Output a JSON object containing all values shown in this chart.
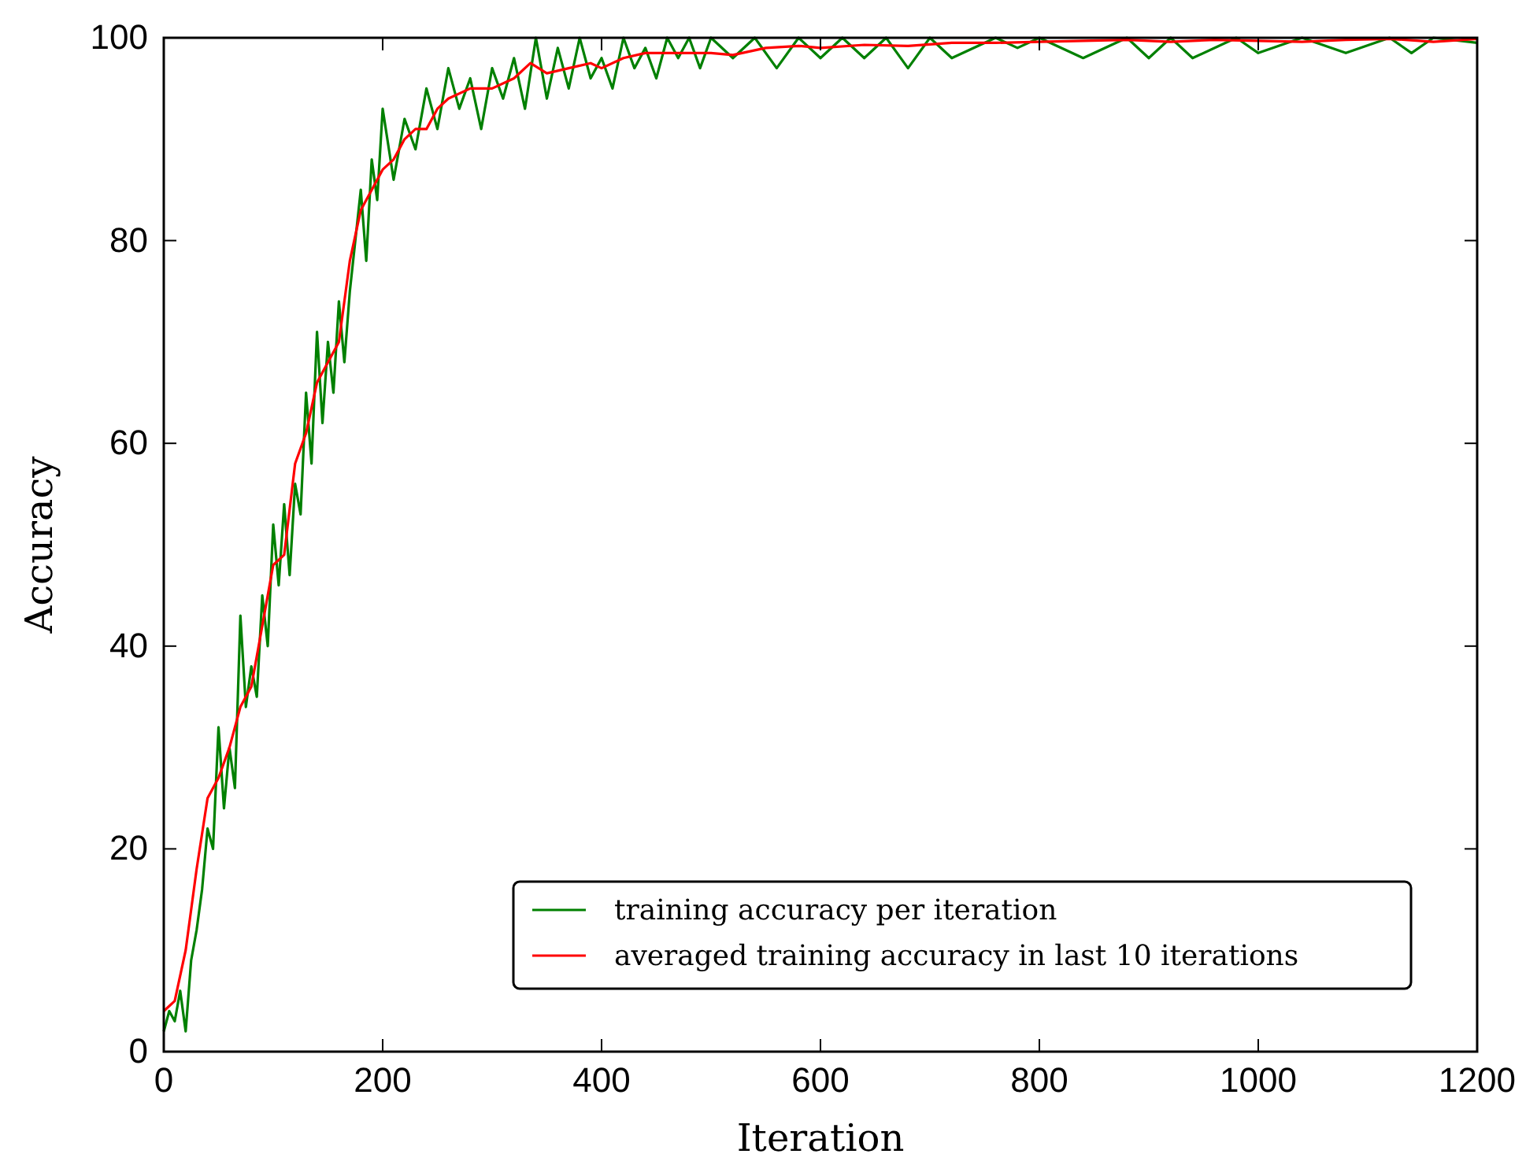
{
  "chart_data": {
    "type": "line",
    "xlabel": "Iteration",
    "ylabel": "Accuracy",
    "xlim": [
      0,
      1200
    ],
    "ylim": [
      0,
      100
    ],
    "xticks": [
      0,
      200,
      400,
      600,
      800,
      1000,
      1200
    ],
    "yticks": [
      0,
      20,
      40,
      60,
      80,
      100
    ],
    "legend": "bottom right",
    "grid": false,
    "x": [
      0,
      5,
      10,
      15,
      20,
      25,
      30,
      35,
      40,
      45,
      50,
      55,
      60,
      65,
      70,
      75,
      80,
      85,
      90,
      95,
      100,
      105,
      110,
      115,
      120,
      125,
      130,
      135,
      140,
      145,
      150,
      155,
      160,
      165,
      170,
      175,
      180,
      185,
      190,
      195,
      200,
      210,
      220,
      230,
      240,
      250,
      260,
      270,
      280,
      290,
      300,
      310,
      320,
      330,
      340,
      350,
      360,
      370,
      380,
      390,
      400,
      410,
      420,
      430,
      440,
      450,
      460,
      470,
      480,
      490,
      500,
      520,
      540,
      560,
      580,
      600,
      620,
      640,
      660,
      680,
      700,
      720,
      760,
      780,
      800,
      840,
      880,
      900,
      920,
      940,
      980,
      1000,
      1040,
      1080,
      1120,
      1140,
      1160,
      1200
    ],
    "series": [
      {
        "name": "training accuracy per iteration",
        "color": "#008000",
        "values": [
          2,
          4,
          3,
          6,
          2,
          9,
          12,
          16,
          22,
          20,
          32,
          24,
          30,
          26,
          43,
          34,
          38,
          35,
          45,
          40,
          52,
          46,
          54,
          47,
          56,
          53,
          65,
          58,
          71,
          62,
          70,
          65,
          74,
          68,
          75,
          80,
          85,
          78,
          88,
          84,
          93,
          86,
          92,
          89,
          95,
          91,
          97,
          93,
          96,
          91,
          97,
          94,
          98,
          93,
          100,
          94,
          99,
          95,
          100,
          96,
          98,
          95,
          100,
          97,
          99,
          96,
          100,
          98,
          100,
          97,
          100,
          98,
          100,
          97,
          100,
          98,
          100,
          98,
          100,
          97,
          100,
          98,
          100,
          99,
          100,
          98,
          100,
          98,
          100,
          98,
          100,
          98.5,
          100,
          98.5,
          100,
          98.5,
          100,
          99.5
        ]
      },
      {
        "name": "averaged training accuracy in last 10 iterations",
        "color": "#ff0000",
        "x": [
          0,
          10,
          20,
          30,
          40,
          50,
          60,
          70,
          80,
          90,
          100,
          110,
          120,
          130,
          140,
          150,
          160,
          170,
          180,
          190,
          200,
          210,
          220,
          230,
          240,
          250,
          260,
          280,
          300,
          320,
          335,
          350,
          370,
          390,
          400,
          420,
          440,
          470,
          500,
          520,
          550,
          580,
          600,
          640,
          680,
          720,
          760,
          800,
          840,
          880,
          920,
          960,
          1000,
          1040,
          1080,
          1120,
          1160,
          1200
        ],
        "values": [
          4,
          5,
          10,
          18,
          25,
          27,
          30,
          34,
          36,
          42,
          48,
          49,
          58,
          61,
          66,
          68,
          70,
          78,
          83,
          85,
          87,
          88,
          90,
          91,
          91,
          93,
          94,
          95,
          95,
          96,
          97.5,
          96.5,
          97,
          97.5,
          97,
          98,
          98.5,
          98.5,
          98.5,
          98.3,
          99,
          99.2,
          99,
          99.3,
          99.2,
          99.5,
          99.5,
          99.6,
          99.7,
          99.8,
          99.6,
          99.8,
          99.7,
          99.6,
          99.8,
          99.9,
          99.6,
          99.9
        ]
      }
    ]
  }
}
